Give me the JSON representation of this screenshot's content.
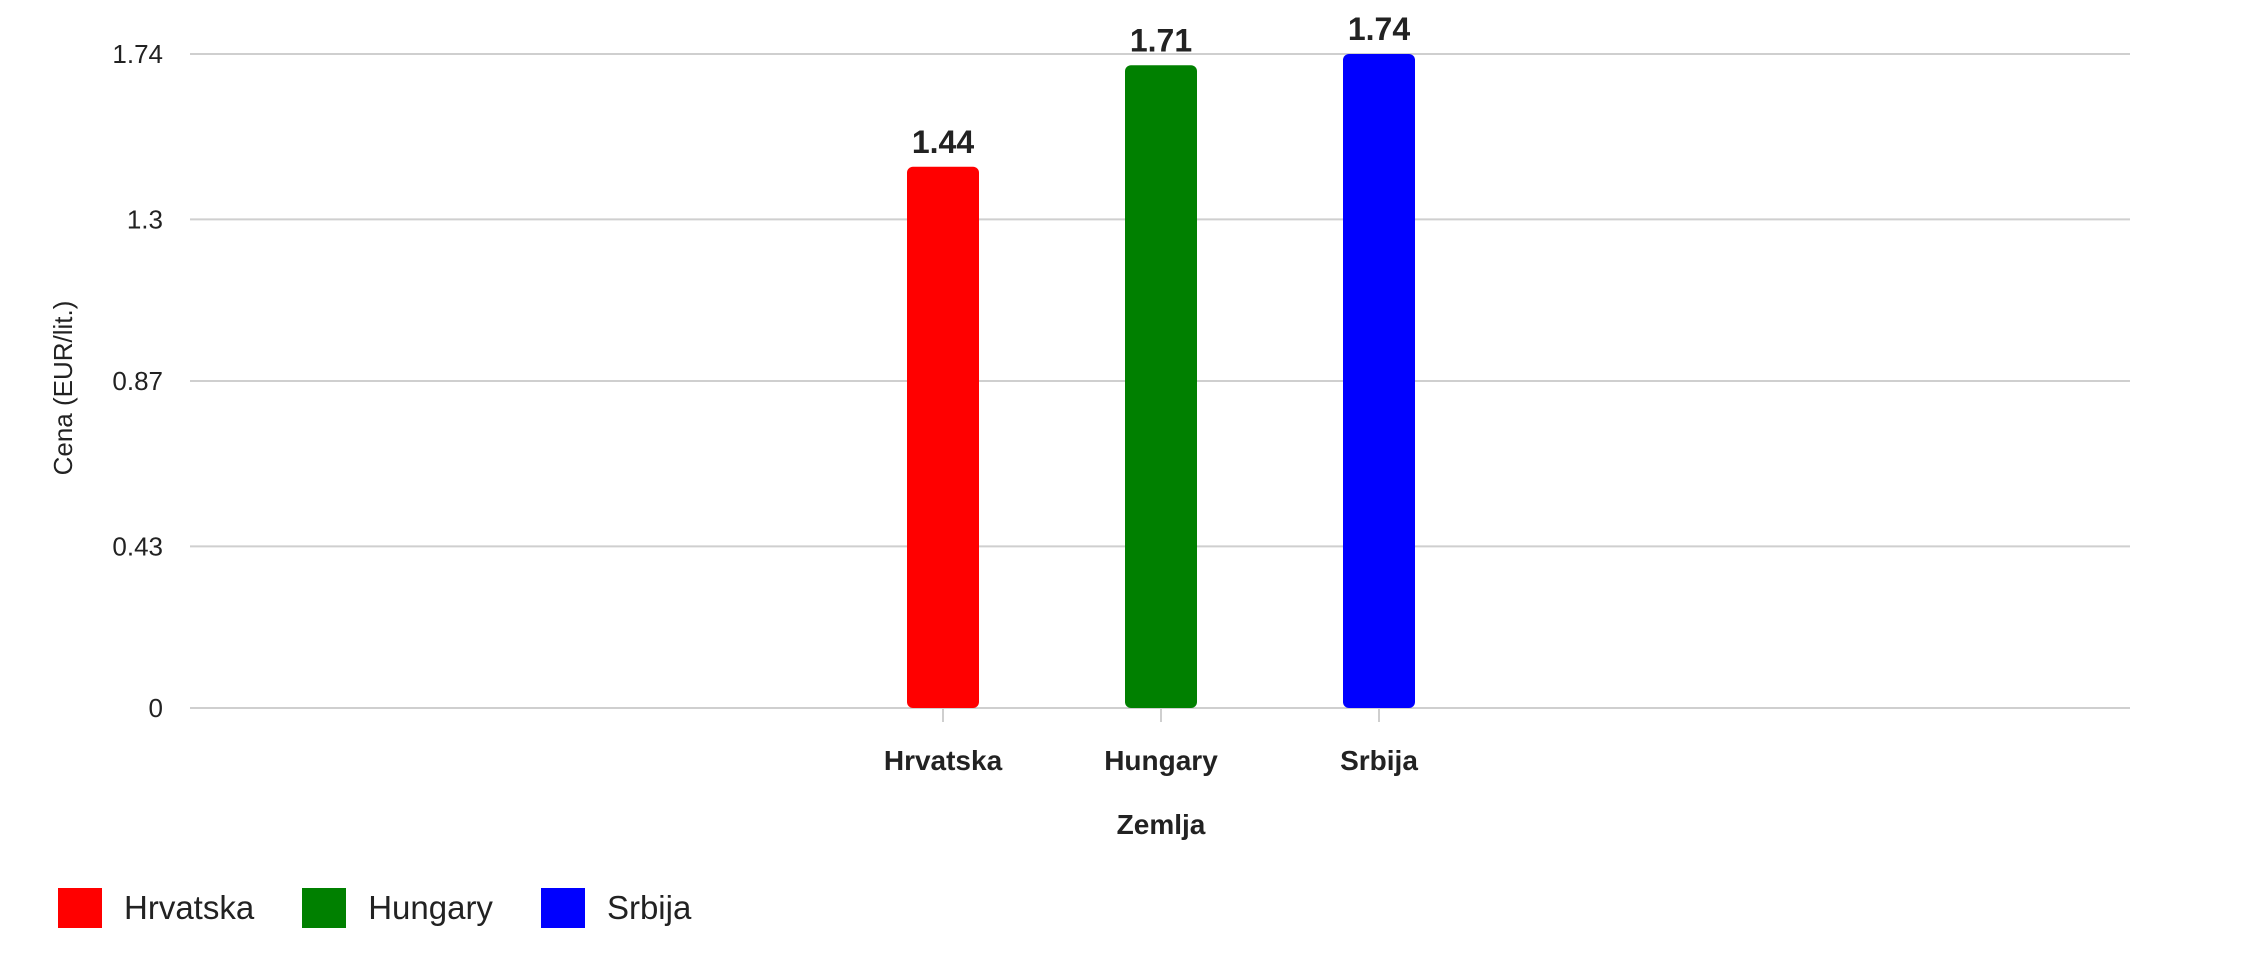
{
  "chart_data": {
    "type": "bar",
    "categories": [
      "Hrvatska",
      "Hungary",
      "Srbija"
    ],
    "values": [
      1.44,
      1.71,
      1.74
    ],
    "colors": [
      "#ff0000",
      "#008000",
      "#0000ff"
    ],
    "data_labels": [
      "1.44",
      "1.71",
      "1.74"
    ],
    "title": "",
    "xlabel": "Zemlja",
    "ylabel": "Cena (EUR/lit.)",
    "ylim": [
      0,
      1.74
    ],
    "yticks": [
      0,
      0.43,
      0.87,
      1.3,
      1.74
    ],
    "ytick_labels": [
      "0",
      "0.43",
      "0.87",
      "1.3",
      "1.74"
    ],
    "grid": true,
    "legend_position": "bottom-left",
    "legend": [
      "Hrvatska",
      "Hungary",
      "Srbija"
    ]
  }
}
